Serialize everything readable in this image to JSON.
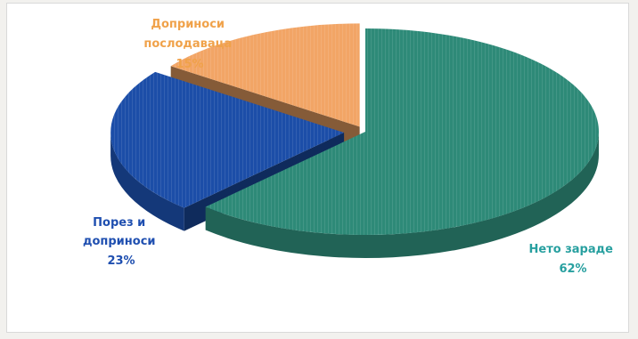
{
  "chart_data": {
    "type": "pie",
    "style": "3d-exploded",
    "legend": "none",
    "slices": [
      {
        "label_lines": [
          "Нето зараде"
        ],
        "pct_label": "62%",
        "value": 62,
        "color": "#2e8a78",
        "label_color": "#28a0a0"
      },
      {
        "label_lines": [
          "Порез и",
          "доприноси"
        ],
        "pct_label": "23%",
        "value": 23,
        "color": "#1c4ea8",
        "label_color": "#1f4fb0"
      },
      {
        "label_lines": [
          "Доприноси",
          "послодаваца"
        ],
        "pct_label": "15%",
        "value": 15,
        "color": "#f2a566",
        "label_color": "#f0a24a"
      }
    ]
  }
}
